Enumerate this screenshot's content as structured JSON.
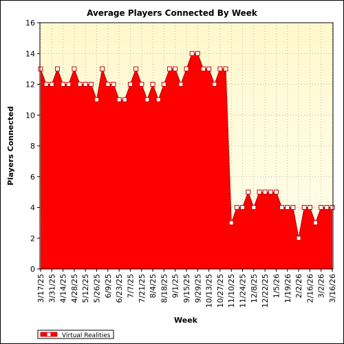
{
  "chart_data": {
    "type": "area",
    "title": "Average Players Connected By Week",
    "xlabel": "Week",
    "ylabel": "Players Connected",
    "ylim": [
      0,
      16
    ],
    "y_ticks": [
      0,
      2,
      4,
      6,
      8,
      10,
      12,
      14,
      16
    ],
    "grid": true,
    "legend_position": "bottom-left",
    "colors": {
      "plot_background_top": "#fff8cc",
      "plot_background_bottom": "#fffef0",
      "area_fill": "#ff0000",
      "area_edge": "#b00000",
      "marker_fill": "#ffffff",
      "marker_edge": "#cc0000"
    },
    "x": [
      "3/17/25",
      "3/24/25",
      "3/31/25",
      "4/7/25",
      "4/14/25",
      "4/21/25",
      "4/28/25",
      "5/5/25",
      "5/12/25",
      "5/19/25",
      "5/26/25",
      "6/2/25",
      "6/9/25",
      "6/16/25",
      "6/23/25",
      "6/30/25",
      "7/7/25",
      "7/14/25",
      "7/21/25",
      "7/28/25",
      "8/4/25",
      "8/11/25",
      "8/18/25",
      "8/25/25",
      "9/1/25",
      "9/8/25",
      "9/15/25",
      "9/22/25",
      "9/29/25",
      "10/6/25",
      "10/13/25",
      "10/20/25",
      "10/27/25",
      "11/3/25",
      "11/10/25",
      "11/17/25",
      "11/24/25",
      "12/1/25",
      "12/8/25",
      "12/15/25",
      "12/22/25",
      "12/29/25",
      "1/5/26",
      "1/12/26",
      "1/19/26",
      "1/26/26",
      "2/2/26",
      "2/9/26",
      "2/16/26",
      "2/23/26",
      "3/2/26",
      "3/9/26",
      "3/16/26"
    ],
    "x_tick_labels": [
      "3/17/25",
      "3/31/25",
      "4/14/25",
      "4/28/25",
      "5/12/25",
      "5/26/25",
      "6/9/25",
      "6/23/25",
      "7/7/25",
      "7/21/25",
      "8/4/25",
      "8/18/25",
      "9/1/25",
      "9/15/25",
      "9/29/25",
      "10/13/25",
      "10/27/25",
      "11/10/25",
      "11/24/25",
      "12/8/25",
      "12/22/25",
      "1/5/26",
      "1/19/26",
      "2/2/26",
      "2/16/26",
      "3/2/26",
      "3/16/26"
    ],
    "series": [
      {
        "name": "Virtual Realities",
        "values": [
          13,
          12,
          12,
          13,
          12,
          12,
          13,
          12,
          12,
          12,
          11,
          13,
          12,
          12,
          11,
          11,
          12,
          13,
          12,
          11,
          12,
          11,
          12,
          13,
          13,
          12,
          13,
          14,
          14,
          13,
          13,
          12,
          13,
          13,
          3,
          4,
          4,
          5,
          4,
          5,
          5,
          5,
          5,
          4,
          4,
          4,
          2,
          4,
          4,
          3,
          4,
          4,
          4
        ]
      }
    ]
  }
}
